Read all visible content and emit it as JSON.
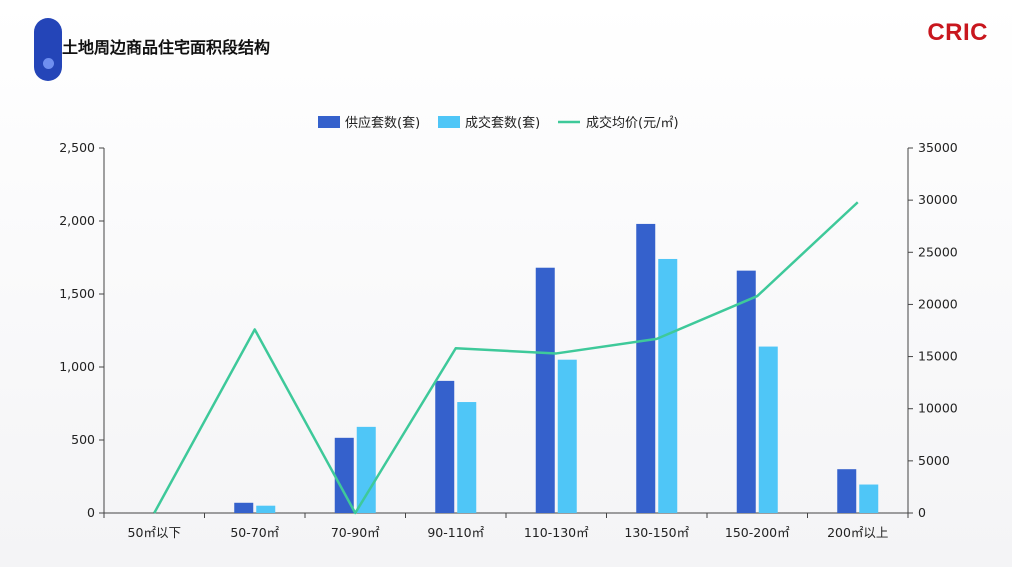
{
  "header": {
    "title": "土地周边商品住宅面积段结构",
    "logo": "CRIC"
  },
  "colors": {
    "supply": "#3561cc",
    "deal": "#4fc6f7",
    "price": "#3ec99a",
    "accent": "#2445b8",
    "logo": "#c8161d"
  },
  "chart_data": {
    "type": "bar",
    "categories": [
      "50㎡以下",
      "50-70㎡",
      "70-90㎡",
      "90-110㎡",
      "110-130㎡",
      "130-150㎡",
      "150-200㎡",
      "200㎡以上"
    ],
    "series": [
      {
        "name": "供应套数(套)",
        "type": "bar",
        "axis": "left",
        "values": [
          0,
          70,
          515,
          905,
          1680,
          1980,
          1660,
          300
        ]
      },
      {
        "name": "成交套数(套)",
        "type": "bar",
        "axis": "left",
        "values": [
          0,
          50,
          590,
          760,
          1050,
          1740,
          1140,
          195
        ]
      },
      {
        "name": "成交均价(元/㎡)",
        "type": "line",
        "axis": "right",
        "values": [
          0,
          17600,
          0,
          15800,
          15300,
          16700,
          20800,
          29800
        ]
      }
    ],
    "y_left": {
      "ylim": [
        0,
        2500
      ],
      "ticks": [
        "0",
        "500",
        "1,000",
        "1,500",
        "2,000",
        "2,500"
      ]
    },
    "y_right": {
      "ylim": [
        0,
        35000
      ],
      "ticks": [
        "0",
        "5000",
        "10000",
        "15000",
        "20000",
        "25000",
        "30000",
        "35000"
      ]
    },
    "legend_position": "top-center",
    "grid": false
  }
}
